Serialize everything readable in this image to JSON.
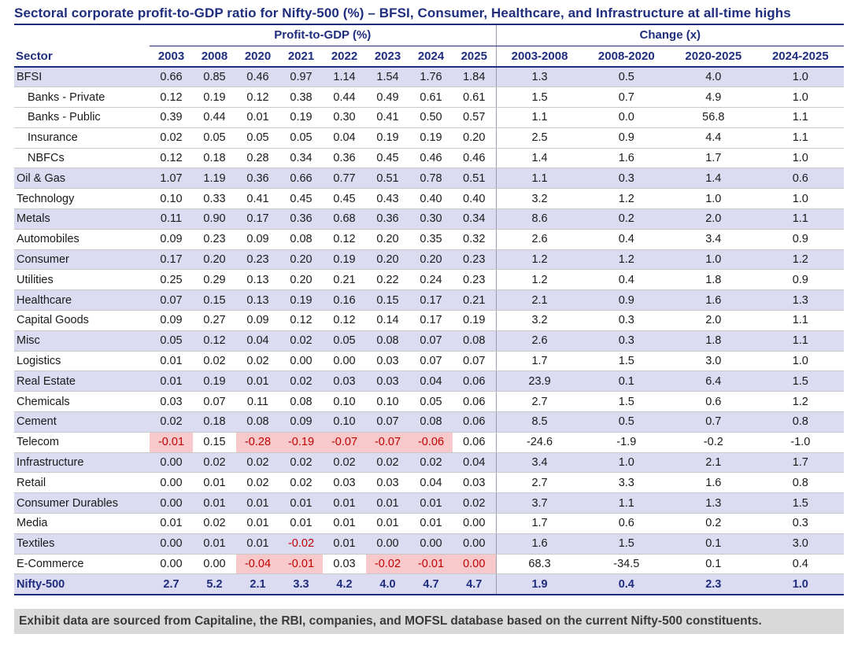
{
  "title": "Sectoral corporate profit-to-GDP ratio for Nifty-500 (%) – BFSI, Consumer, Healthcare, and Infrastructure at all-time highs",
  "groups": [
    "Profit-to-GDP (%)",
    "Change (x)"
  ],
  "sector_header": "Sector",
  "year_columns": [
    "2003",
    "2008",
    "2020",
    "2021",
    "2022",
    "2023",
    "2024",
    "2025"
  ],
  "change_columns": [
    "2003-2008",
    "2008-2020",
    "2020-2025",
    "2024-2025"
  ],
  "rows": [
    {
      "sector": "BFSI",
      "indent": false,
      "shaded": true,
      "total": false,
      "values": [
        "0.66",
        "0.85",
        "0.46",
        "0.97",
        "1.14",
        "1.54",
        "1.76",
        "1.84"
      ],
      "highlights": [],
      "changes": [
        "1.3",
        "0.5",
        "4.0",
        "1.0"
      ]
    },
    {
      "sector": "Banks - Private",
      "indent": true,
      "shaded": false,
      "total": false,
      "values": [
        "0.12",
        "0.19",
        "0.12",
        "0.38",
        "0.44",
        "0.49",
        "0.61",
        "0.61"
      ],
      "highlights": [],
      "changes": [
        "1.5",
        "0.7",
        "4.9",
        "1.0"
      ]
    },
    {
      "sector": "Banks - Public",
      "indent": true,
      "shaded": false,
      "total": false,
      "values": [
        "0.39",
        "0.44",
        "0.01",
        "0.19",
        "0.30",
        "0.41",
        "0.50",
        "0.57"
      ],
      "highlights": [],
      "changes": [
        "1.1",
        "0.0",
        "56.8",
        "1.1"
      ]
    },
    {
      "sector": "Insurance",
      "indent": true,
      "shaded": false,
      "total": false,
      "values": [
        "0.02",
        "0.05",
        "0.05",
        "0.05",
        "0.04",
        "0.19",
        "0.19",
        "0.20"
      ],
      "highlights": [],
      "changes": [
        "2.5",
        "0.9",
        "4.4",
        "1.1"
      ]
    },
    {
      "sector": "NBFCs",
      "indent": true,
      "shaded": false,
      "total": false,
      "values": [
        "0.12",
        "0.18",
        "0.28",
        "0.34",
        "0.36",
        "0.45",
        "0.46",
        "0.46"
      ],
      "highlights": [],
      "changes": [
        "1.4",
        "1.6",
        "1.7",
        "1.0"
      ]
    },
    {
      "sector": "Oil & Gas",
      "indent": false,
      "shaded": true,
      "total": false,
      "values": [
        "1.07",
        "1.19",
        "0.36",
        "0.66",
        "0.77",
        "0.51",
        "0.78",
        "0.51"
      ],
      "highlights": [],
      "changes": [
        "1.1",
        "0.3",
        "1.4",
        "0.6"
      ]
    },
    {
      "sector": "Technology",
      "indent": false,
      "shaded": false,
      "total": false,
      "values": [
        "0.10",
        "0.33",
        "0.41",
        "0.45",
        "0.45",
        "0.43",
        "0.40",
        "0.40"
      ],
      "highlights": [],
      "changes": [
        "3.2",
        "1.2",
        "1.0",
        "1.0"
      ]
    },
    {
      "sector": "Metals",
      "indent": false,
      "shaded": true,
      "total": false,
      "values": [
        "0.11",
        "0.90",
        "0.17",
        "0.36",
        "0.68",
        "0.36",
        "0.30",
        "0.34"
      ],
      "highlights": [],
      "changes": [
        "8.6",
        "0.2",
        "2.0",
        "1.1"
      ]
    },
    {
      "sector": "Automobiles",
      "indent": false,
      "shaded": false,
      "total": false,
      "values": [
        "0.09",
        "0.23",
        "0.09",
        "0.08",
        "0.12",
        "0.20",
        "0.35",
        "0.32"
      ],
      "highlights": [],
      "changes": [
        "2.6",
        "0.4",
        "3.4",
        "0.9"
      ]
    },
    {
      "sector": "Consumer",
      "indent": false,
      "shaded": true,
      "total": false,
      "values": [
        "0.17",
        "0.20",
        "0.23",
        "0.20",
        "0.19",
        "0.20",
        "0.20",
        "0.23"
      ],
      "highlights": [],
      "changes": [
        "1.2",
        "1.2",
        "1.0",
        "1.2"
      ]
    },
    {
      "sector": "Utilities",
      "indent": false,
      "shaded": false,
      "total": false,
      "values": [
        "0.25",
        "0.29",
        "0.13",
        "0.20",
        "0.21",
        "0.22",
        "0.24",
        "0.23"
      ],
      "highlights": [],
      "changes": [
        "1.2",
        "0.4",
        "1.8",
        "0.9"
      ]
    },
    {
      "sector": "Healthcare",
      "indent": false,
      "shaded": true,
      "total": false,
      "values": [
        "0.07",
        "0.15",
        "0.13",
        "0.19",
        "0.16",
        "0.15",
        "0.17",
        "0.21"
      ],
      "highlights": [],
      "changes": [
        "2.1",
        "0.9",
        "1.6",
        "1.3"
      ]
    },
    {
      "sector": "Capital Goods",
      "indent": false,
      "shaded": false,
      "total": false,
      "values": [
        "0.09",
        "0.27",
        "0.09",
        "0.12",
        "0.12",
        "0.14",
        "0.17",
        "0.19"
      ],
      "highlights": [],
      "changes": [
        "3.2",
        "0.3",
        "2.0",
        "1.1"
      ]
    },
    {
      "sector": "Misc",
      "indent": false,
      "shaded": true,
      "total": false,
      "values": [
        "0.05",
        "0.12",
        "0.04",
        "0.02",
        "0.05",
        "0.08",
        "0.07",
        "0.08"
      ],
      "highlights": [],
      "changes": [
        "2.6",
        "0.3",
        "1.8",
        "1.1"
      ]
    },
    {
      "sector": "Logistics",
      "indent": false,
      "shaded": false,
      "total": false,
      "values": [
        "0.01",
        "0.02",
        "0.02",
        "0.00",
        "0.00",
        "0.03",
        "0.07",
        "0.07"
      ],
      "highlights": [],
      "changes": [
        "1.7",
        "1.5",
        "3.0",
        "1.0"
      ]
    },
    {
      "sector": "Real Estate",
      "indent": false,
      "shaded": true,
      "total": false,
      "values": [
        "0.01",
        "0.19",
        "0.01",
        "0.02",
        "0.03",
        "0.03",
        "0.04",
        "0.06"
      ],
      "highlights": [],
      "changes": [
        "23.9",
        "0.1",
        "6.4",
        "1.5"
      ]
    },
    {
      "sector": "Chemicals",
      "indent": false,
      "shaded": false,
      "total": false,
      "values": [
        "0.03",
        "0.07",
        "0.11",
        "0.08",
        "0.10",
        "0.10",
        "0.05",
        "0.06"
      ],
      "highlights": [],
      "changes": [
        "2.7",
        "1.5",
        "0.6",
        "1.2"
      ]
    },
    {
      "sector": "Cement",
      "indent": false,
      "shaded": true,
      "total": false,
      "values": [
        "0.02",
        "0.18",
        "0.08",
        "0.09",
        "0.10",
        "0.07",
        "0.08",
        "0.06"
      ],
      "highlights": [],
      "changes": [
        "8.5",
        "0.5",
        "0.7",
        "0.8"
      ]
    },
    {
      "sector": "Telecom",
      "indent": false,
      "shaded": false,
      "total": false,
      "values": [
        "-0.01",
        "0.15",
        "-0.28",
        "-0.19",
        "-0.07",
        "-0.07",
        "-0.06",
        "0.06"
      ],
      "highlights": [
        0,
        2,
        3,
        4,
        5,
        6
      ],
      "changes": [
        "-24.6",
        "-1.9",
        "-0.2",
        "-1.0"
      ]
    },
    {
      "sector": "Infrastructure",
      "indent": false,
      "shaded": true,
      "total": false,
      "values": [
        "0.00",
        "0.02",
        "0.02",
        "0.02",
        "0.02",
        "0.02",
        "0.02",
        "0.04"
      ],
      "highlights": [],
      "changes": [
        "3.4",
        "1.0",
        "2.1",
        "1.7"
      ]
    },
    {
      "sector": "Retail",
      "indent": false,
      "shaded": false,
      "total": false,
      "values": [
        "0.00",
        "0.01",
        "0.02",
        "0.02",
        "0.03",
        "0.03",
        "0.04",
        "0.03"
      ],
      "highlights": [],
      "changes": [
        "2.7",
        "3.3",
        "1.6",
        "0.8"
      ]
    },
    {
      "sector": "Consumer Durables",
      "indent": false,
      "shaded": true,
      "total": false,
      "values": [
        "0.00",
        "0.01",
        "0.01",
        "0.01",
        "0.01",
        "0.01",
        "0.01",
        "0.02"
      ],
      "highlights": [],
      "changes": [
        "3.7",
        "1.1",
        "1.3",
        "1.5"
      ]
    },
    {
      "sector": "Media",
      "indent": false,
      "shaded": false,
      "total": false,
      "values": [
        "0.01",
        "0.02",
        "0.01",
        "0.01",
        "0.01",
        "0.01",
        "0.01",
        "0.00"
      ],
      "highlights": [],
      "changes": [
        "1.7",
        "0.6",
        "0.2",
        "0.3"
      ]
    },
    {
      "sector": "Textiles",
      "indent": false,
      "shaded": true,
      "total": false,
      "values": [
        "0.00",
        "0.01",
        "0.01",
        "-0.02",
        "0.01",
        "0.00",
        "0.00",
        "0.00"
      ],
      "highlights": [
        3
      ],
      "changes": [
        "1.6",
        "1.5",
        "0.1",
        "3.0"
      ]
    },
    {
      "sector": "E-Commerce",
      "indent": false,
      "shaded": false,
      "total": false,
      "values": [
        "0.00",
        "0.00",
        "-0.04",
        "-0.01",
        "0.03",
        "-0.02",
        "-0.01",
        "0.00"
      ],
      "highlights": [
        2,
        3,
        5,
        6,
        7
      ],
      "changes": [
        "68.3",
        "-34.5",
        "0.1",
        "0.4"
      ]
    },
    {
      "sector": "Nifty-500",
      "indent": false,
      "shaded": true,
      "total": true,
      "values": [
        "2.7",
        "5.2",
        "2.1",
        "3.3",
        "4.2",
        "4.0",
        "4.7",
        "4.7"
      ],
      "highlights": [],
      "changes": [
        "1.9",
        "0.4",
        "2.3",
        "1.0"
      ]
    }
  ],
  "footer": "Exhibit data are sourced from Capitaline, the RBI, companies, and MOFSL database based on the current Nifty-500 constituents.",
  "colors": {
    "accent_navy": "#1F2D7E",
    "row_shade": "#DBDBF2",
    "negative_bg": "#F8C9CA",
    "negative_text": "#C00000",
    "footer_bg": "#D9D9D9"
  }
}
